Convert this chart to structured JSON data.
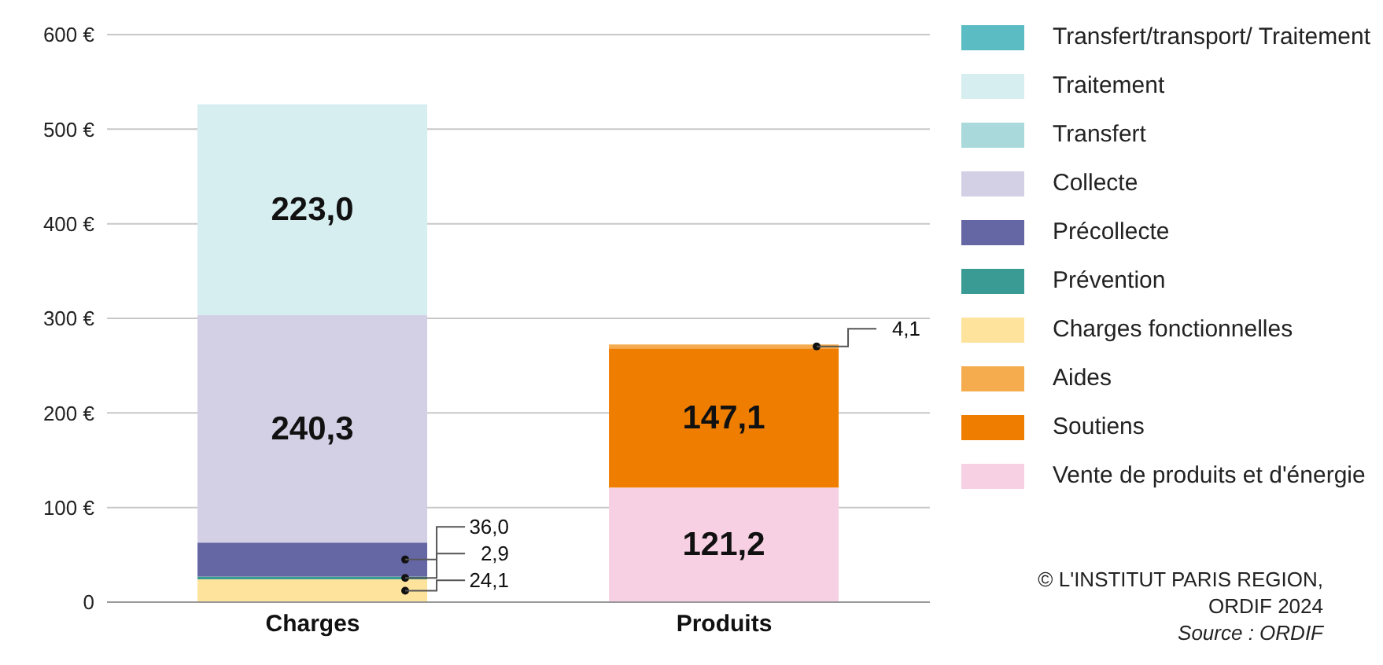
{
  "chart_data": {
    "type": "bar",
    "stacked": true,
    "categories": [
      "Charges",
      "Produits"
    ],
    "ylim": [
      0,
      600
    ],
    "yticks": [
      0,
      {
        "value": 100,
        "label": "100 €"
      },
      {
        "value": 200,
        "label": "200 €"
      },
      {
        "value": 300,
        "label": "300 €"
      },
      {
        "value": 400,
        "label": "400 €"
      },
      {
        "value": 500,
        "label": "500 €"
      },
      {
        "value": 600,
        "label": "600 €"
      }
    ],
    "grid": "y",
    "legend": "right",
    "series": [
      {
        "name": "Vente de produits et d'énergie",
        "color": "#f8d0e3",
        "values": [
          null,
          121.2
        ],
        "value_labels": [
          null,
          "121,2"
        ]
      },
      {
        "name": "Soutiens",
        "color": "#ee7d00",
        "values": [
          null,
          147.1
        ],
        "value_labels": [
          null,
          "147,1"
        ]
      },
      {
        "name": "Aides",
        "color": "#f5ac4e",
        "values": [
          null,
          4.1
        ],
        "value_labels": [
          null,
          "4,1"
        ]
      },
      {
        "name": "Charges fonctionnelles",
        "color": "#fde39b",
        "values": [
          24.1,
          null
        ],
        "value_labels": [
          "24,1",
          null
        ]
      },
      {
        "name": "Prévention",
        "color": "#3a9a94",
        "values": [
          2.9,
          null
        ],
        "value_labels": [
          "2,9",
          null
        ]
      },
      {
        "name": "Précollecte",
        "color": "#6566a4",
        "values": [
          36.0,
          null
        ],
        "value_labels": [
          "36,0",
          null
        ]
      },
      {
        "name": "Collecte",
        "color": "#d3d0e5",
        "values": [
          240.3,
          null
        ],
        "value_labels": [
          "240,3",
          null
        ]
      },
      {
        "name": "Transfert",
        "color": "#a9d9db",
        "values": [
          null,
          null
        ]
      },
      {
        "name": "Traitement",
        "color": "#d6eef0",
        "values": [
          223.0,
          null
        ],
        "value_labels": [
          "223,0",
          null
        ]
      },
      {
        "name": "Transfert/transport/ Traitement",
        "color": "#5bbcc3",
        "values": [
          null,
          null
        ]
      }
    ],
    "annotations": [
      "© L'INSTITUT PARIS REGION,\nORDIF 2024",
      "Source : ORDIF"
    ]
  }
}
